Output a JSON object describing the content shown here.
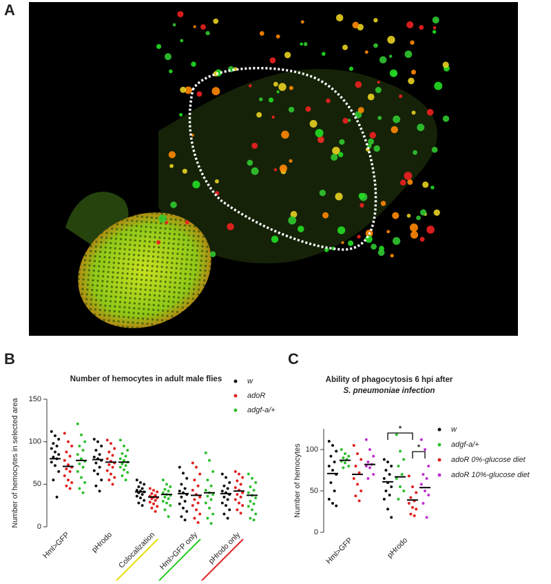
{
  "panel_labels": [
    "A",
    "B",
    "C"
  ],
  "chart_data": [
    {
      "type": "strip",
      "title": [
        "Number of hemocytes in adult male flies"
      ],
      "ylabel": "Number of hemocytes in selected area",
      "categories": [
        "Hml>GFP",
        "pHrodo",
        "Colocalization",
        "Hml>GFP only",
        "pHrodo only"
      ],
      "category_underlines": [
        null,
        null,
        "#e6e000",
        "#22cc22",
        "#dd2222"
      ],
      "ylim": [
        0,
        150
      ],
      "yticks": [
        0,
        50,
        100,
        150
      ],
      "series": [
        {
          "name": "w",
          "color": "#111111",
          "means": [
            80,
            79,
            41,
            39,
            39
          ],
          "values": [
            [
              112,
              107,
              103,
              98,
              95,
              92,
              88,
              85,
              82,
              80,
              76,
              72,
              65,
              55,
              35
            ],
            [
              103,
              100,
              95,
              90,
              85,
              82,
              80,
              78,
              75,
              70,
              66,
              62,
              55,
              48,
              42
            ],
            [
              55,
              52,
              50,
              47,
              45,
              43,
              42,
              41,
              40,
              38,
              36,
              34,
              31,
              28,
              25
            ],
            [
              70,
              63,
              57,
              50,
              45,
              42,
              40,
              38,
              35,
              30,
              27,
              22,
              18,
              12,
              8
            ],
            [
              62,
              58,
              52,
              48,
              45,
              42,
              40,
              38,
              35,
              32,
              28,
              25,
              20,
              15,
              10
            ]
          ]
        },
        {
          "name": "adoR",
          "color": "#e02020",
          "means": [
            71,
            76,
            35,
            37,
            42
          ],
          "values": [
            [
              110,
              100,
              95,
              88,
              83,
              78,
              73,
              70,
              68,
              65,
              60,
              55,
              52,
              48,
              45
            ],
            [
              102,
              98,
              92,
              88,
              84,
              80,
              77,
              75,
              73,
              70,
              66,
              62,
              58,
              55,
              50
            ],
            [
              45,
              43,
              41,
              39,
              37,
              36,
              35,
              34,
              33,
              31,
              29,
              27,
              24,
              22,
              18
            ],
            [
              75,
              70,
              62,
              55,
              48,
              43,
              38,
              35,
              32,
              28,
              25,
              20,
              15,
              10,
              5
            ],
            [
              65,
              62,
              58,
              54,
              50,
              46,
              43,
              40,
              38,
              35,
              32,
              28,
              25,
              20,
              16
            ]
          ]
        },
        {
          "name": "adgf-a/+",
          "color": "#2fbf2f",
          "means": [
            78,
            76,
            38,
            40,
            37
          ],
          "values": [
            [
              121,
              108,
              100,
              95,
              90,
              85,
              80,
              77,
              74,
              70,
              65,
              58,
              52,
              45,
              40
            ],
            [
              102,
              95,
              90,
              86,
              83,
              80,
              78,
              76,
              74,
              72,
              70,
              67,
              64,
              60,
              55
            ],
            [
              55,
              50,
              47,
              44,
              42,
              40,
              38,
              37,
              35,
              33,
              30,
              28,
              25,
              20,
              12
            ],
            [
              87,
              78,
              65,
              55,
              48,
              43,
              40,
              38,
              36,
              32,
              28,
              22,
              15,
              10,
              4
            ],
            [
              62,
              57,
              52,
              47,
              43,
              40,
              37,
              34,
              30,
              27,
              24,
              20,
              15,
              10,
              8
            ]
          ]
        }
      ]
    },
    {
      "type": "strip",
      "title": [
        "Ability of phagocytosis 6 hpi after",
        "S. pneumoniae infection"
      ],
      "ylabel": "Number of hemocytes",
      "categories": [
        "Hml>GFP",
        "pHrodo"
      ],
      "ylim": [
        0,
        125
      ],
      "yticks": [
        0,
        50,
        100
      ],
      "significance": [
        {
          "label": "*",
          "category": 1,
          "series": [
            0,
            2
          ]
        },
        {
          "label": "*",
          "category": 1,
          "series": [
            2,
            3
          ]
        }
      ],
      "series": [
        {
          "name": "w",
          "color": "#111111",
          "means": [
            71,
            61
          ],
          "values": [
            [
              110,
              105,
              98,
              92,
              85,
              80,
              75,
              70,
              60,
              50,
              40,
              35,
              32
            ],
            [
              88,
              85,
              80,
              75,
              70,
              65,
              60,
              55,
              50,
              45,
              40,
              28,
              18
            ]
          ]
        },
        {
          "name": "adgf-a/+",
          "color": "#2fbf2f",
          "means": [
            87,
            67
          ],
          "values": [
            [
              100,
              95,
              92,
              90,
              88,
              86,
              84,
              80,
              78
            ],
            [
              118,
              98,
              88,
              80,
              70,
              65,
              55,
              50,
              40
            ]
          ]
        },
        {
          "name": "adoR 0%-glucose diet",
          "color": "#e02020",
          "means": [
            70,
            39
          ],
          "values": [
            [
              105,
              95,
              88,
              80,
              72,
              65,
              58,
              50,
              44,
              38
            ],
            [
              68,
              55,
              48,
              42,
              38,
              35,
              30,
              28,
              22,
              20
            ]
          ]
        },
        {
          "name": "adoR 10%-glucose diet",
          "color": "#c030d0",
          "means": [
            82,
            54
          ],
          "values": [
            [
              112,
              100,
              92,
              85,
              82,
              80,
              78,
              70,
              65
            ],
            [
              112,
              100,
              80,
              70,
              65,
              58,
              50,
              45,
              35,
              18
            ]
          ]
        }
      ]
    }
  ]
}
